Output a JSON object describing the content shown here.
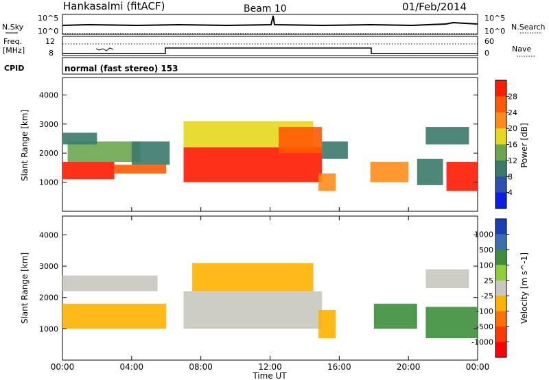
{
  "header": {
    "station": "Hankasalmi (fitACF)",
    "beam": "Beam 10",
    "date": "01/Feb/2014"
  },
  "panels": {
    "nsky": {
      "label": "N.Sky",
      "right_label": "N.Search",
      "y_top": "10^5",
      "y_bottom": "10^0",
      "r_top": "10^5",
      "r_bottom": "10^0"
    },
    "freq": {
      "label_line1": "Freq.",
      "label_line2": "[MHz]",
      "y_top": "12",
      "y_bottom": "8",
      "r_top": "60",
      "r_bottom": "0",
      "right_label": "Nave"
    },
    "cpid": {
      "label": "CPID",
      "text": "normal (fast stereo) 153"
    }
  },
  "chart_data": [
    {
      "type": "heatmap",
      "title": "Power",
      "xlabel": "",
      "ylabel": "Slant Range [km]",
      "xlim": [
        "00:00",
        "24:00"
      ],
      "ylim": [
        0,
        4600
      ],
      "yticks": [
        1000,
        2000,
        3000,
        4000
      ],
      "colorbar": {
        "label": "Power [dB]",
        "ticks": [
          4,
          8,
          12,
          16,
          20,
          24,
          28
        ],
        "colors": [
          "#0a1ee6",
          "#2f4fb0",
          "#3a7a6a",
          "#6aa64c",
          "#e6d81e",
          "#ff8c1a",
          "#ff5a00",
          "#ff1a00"
        ]
      },
      "regions": [
        {
          "t0": 0.0,
          "t1": 3.0,
          "r0": 1100,
          "r1": 1700,
          "value": 28
        },
        {
          "t0": 0.3,
          "t1": 4.5,
          "r0": 1700,
          "r1": 2400,
          "value": 14
        },
        {
          "t0": 0.0,
          "t1": 2.0,
          "r0": 2300,
          "r1": 2700,
          "value": 9
        },
        {
          "t0": 3.0,
          "t1": 6.0,
          "r0": 1300,
          "r1": 1600,
          "value": 26
        },
        {
          "t0": 4.0,
          "t1": 6.2,
          "r0": 1600,
          "r1": 2400,
          "value": 9
        },
        {
          "t0": 7.0,
          "t1": 15.0,
          "r0": 1000,
          "r1": 2200,
          "value": 28
        },
        {
          "t0": 7.0,
          "t1": 14.5,
          "r0": 2200,
          "r1": 3100,
          "value": 18
        },
        {
          "t0": 12.5,
          "t1": 15.0,
          "r0": 2000,
          "r1": 2900,
          "value": 26
        },
        {
          "t0": 14.8,
          "t1": 15.8,
          "r0": 700,
          "r1": 1300,
          "value": 20
        },
        {
          "t0": 15.0,
          "t1": 16.5,
          "r0": 1800,
          "r1": 2400,
          "value": 8
        },
        {
          "t0": 17.8,
          "t1": 20.0,
          "r0": 1000,
          "r1": 1700,
          "value": 22
        },
        {
          "t0": 20.5,
          "t1": 22.0,
          "r0": 900,
          "r1": 1800,
          "value": 10
        },
        {
          "t0": 22.2,
          "t1": 24.0,
          "r0": 700,
          "r1": 1700,
          "value": 28
        },
        {
          "t0": 21.0,
          "t1": 23.5,
          "r0": 2300,
          "r1": 2900,
          "value": 8
        }
      ]
    },
    {
      "type": "heatmap",
      "title": "Velocity",
      "xlabel": "Time UT",
      "ylabel": "Slant Range [km]",
      "xlim": [
        "00:00",
        "24:00"
      ],
      "ylim": [
        0,
        4600
      ],
      "yticks": [
        1000,
        2000,
        3000,
        4000
      ],
      "xticks": [
        "00:00",
        "04:00",
        "08:00",
        "12:00",
        "16:00",
        "20:00",
        "00:00"
      ],
      "colorbar": {
        "label": "Velocity [m s^-1]",
        "ticks": [
          "1000",
          "500",
          "100",
          "25",
          "-25",
          "-100",
          "-500",
          "-1000"
        ],
        "colors": [
          "#1d3fb5",
          "#3a6fb0",
          "#3c8f3c",
          "#8fce3a",
          "#c8c8c0",
          "#ffb100",
          "#ff7000",
          "#ff3a00",
          "#ff0000"
        ]
      },
      "regions": [
        {
          "t0": 0.0,
          "t1": 6.0,
          "r0": 1000,
          "r1": 1800,
          "value": -100
        },
        {
          "t0": 0.0,
          "t1": 5.5,
          "r0": 2200,
          "r1": 2700,
          "value": 0
        },
        {
          "t0": 7.0,
          "t1": 15.0,
          "r0": 1000,
          "r1": 2200,
          "value": 0
        },
        {
          "t0": 7.5,
          "t1": 14.5,
          "r0": 2200,
          "r1": 3100,
          "value": -100
        },
        {
          "t0": 14.8,
          "t1": 15.8,
          "r0": 700,
          "r1": 1600,
          "value": -100
        },
        {
          "t0": 18.0,
          "t1": 20.5,
          "r0": 1000,
          "r1": 1800,
          "value": 100
        },
        {
          "t0": 21.0,
          "t1": 24.0,
          "r0": 700,
          "r1": 1700,
          "value": 100
        },
        {
          "t0": 21.0,
          "t1": 23.5,
          "r0": 2300,
          "r1": 2900,
          "value": 0
        }
      ]
    }
  ]
}
